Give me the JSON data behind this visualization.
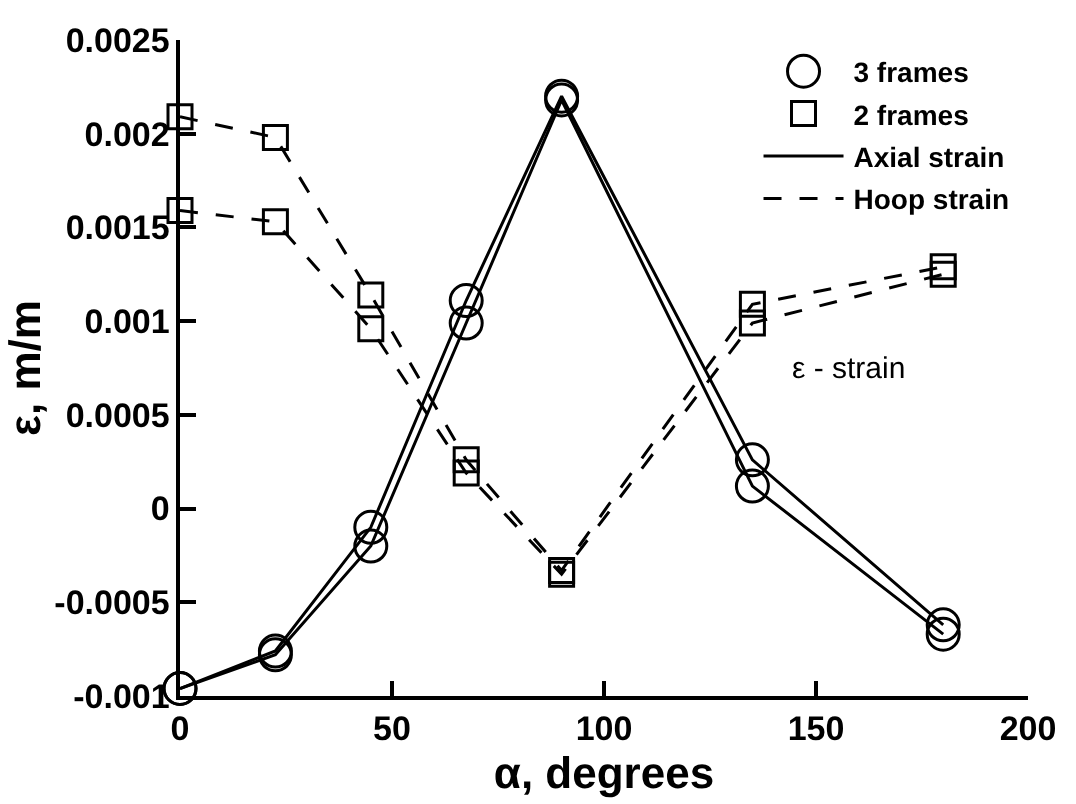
{
  "chart_data": {
    "type": "line",
    "xlabel": "α, degrees",
    "ylabel": "ε, m/m",
    "x": [
      0,
      22.5,
      45,
      67.5,
      90,
      135,
      180
    ],
    "series": [
      {
        "color": "#000000",
        "marker": "circle",
        "line_style": "solid",
        "values": [
          -0.00096,
          -0.00076,
          -0.0001,
          0.00111,
          0.0022,
          0.00026,
          -0.00062
        ]
      },
      {
        "color": "#000000",
        "marker": "circle",
        "line_style": "solid",
        "values": [
          -0.00096,
          -0.00078,
          -0.0002,
          0.00099,
          0.00218,
          0.00012,
          -0.00067
        ]
      },
      {
        "color": "#000000",
        "marker": "square",
        "line_style": "dashed",
        "values": [
          0.00209,
          0.00198,
          0.00114,
          0.00026,
          -0.00033,
          0.00109,
          0.00129
        ]
      },
      {
        "color": "#000000",
        "marker": "square",
        "line_style": "dashed",
        "values": [
          0.00159,
          0.00153,
          0.00096,
          0.00019,
          -0.00035,
          0.00099,
          0.00125
        ]
      },
      {
        "name": "3 frames",
        "color": "#000000",
        "marker": "circle",
        "line_style": "none",
        "values": [
          null,
          null,
          null,
          null,
          null,
          null,
          null
        ]
      },
      {
        "name": "2 frames",
        "color": "#000000",
        "marker": "square",
        "line_style": "none",
        "values": [
          null,
          null,
          null,
          null,
          null,
          null,
          null
        ]
      },
      {
        "name": "Axial strain",
        "color": "#000000",
        "marker": "none",
        "line_style": "solid",
        "values": [
          null,
          null,
          null,
          null,
          null,
          null,
          null
        ]
      },
      {
        "name": "Hoop strain",
        "color": "#000000",
        "marker": "none",
        "line_style": "dashed",
        "values": [
          null,
          null,
          null,
          null,
          null,
          null,
          null
        ]
      }
    ],
    "xlim": [
      0,
      200
    ],
    "xticks": [
      0,
      50,
      100,
      150,
      200
    ],
    "ylim": [
      -0.001,
      0.0025
    ],
    "yticks": [
      -0.001,
      -0.0005,
      0,
      0.0005,
      0.001,
      0.0015,
      0.002,
      0.0025
    ],
    "legend": "top right",
    "annotations": [
      "ε - strain"
    ]
  }
}
